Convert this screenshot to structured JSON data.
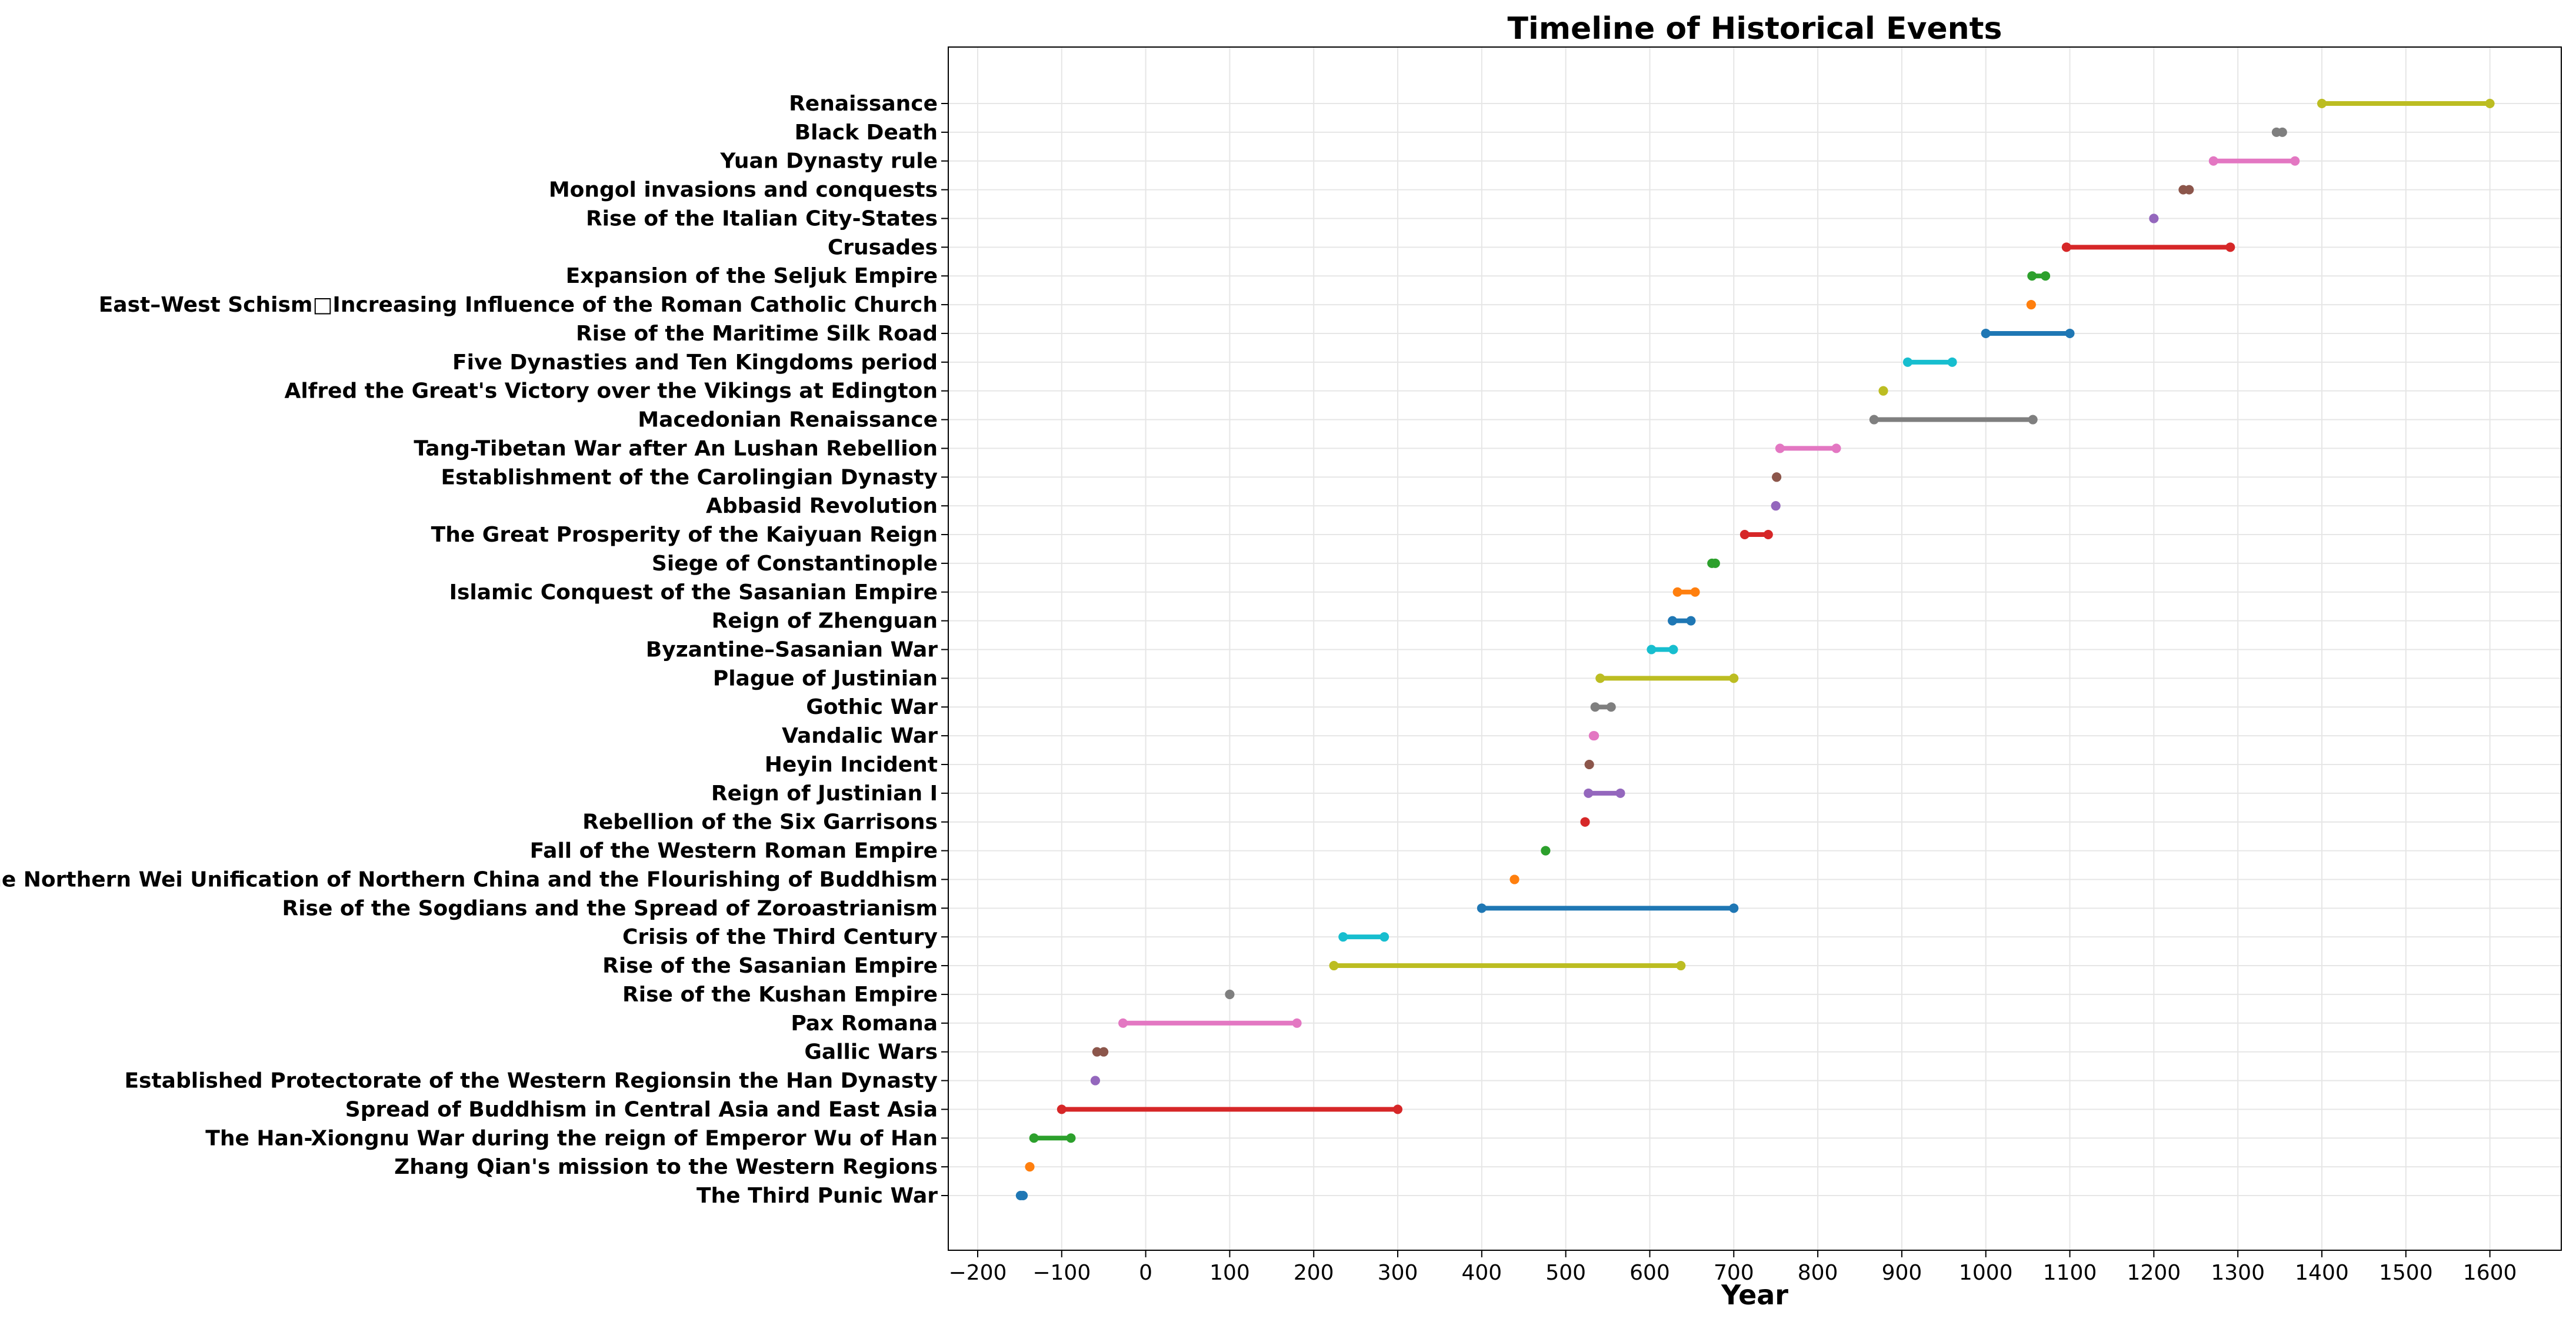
{
  "chart_data": {
    "type": "timeline",
    "title": "Timeline of Historical Events",
    "xlabel": "Year",
    "ylabel": "",
    "xlim": [
      -235,
      1685
    ],
    "xticks": [
      -200,
      -100,
      0,
      100,
      200,
      300,
      400,
      500,
      600,
      700,
      800,
      900,
      1000,
      1100,
      1200,
      1300,
      1400,
      1500,
      1600
    ],
    "grid": true,
    "palette": [
      "#1f77b4",
      "#ff7f0e",
      "#2ca02c",
      "#d62728",
      "#9467bd",
      "#8c564b",
      "#e377c2",
      "#7f7f7f",
      "#bcbd22",
      "#17becf"
    ],
    "events": [
      {
        "label": "The Third Punic War",
        "start": -149,
        "end": -146
      },
      {
        "label": "Zhang Qian's mission to the Western Regions",
        "start": -138,
        "end": -138
      },
      {
        "label": "The Han-Xiongnu War during the reign of Emperor Wu of Han",
        "start": -133,
        "end": -89
      },
      {
        "label": "Spread of Buddhism in Central Asia and East Asia",
        "start": -100,
        "end": 300
      },
      {
        "label": "Established Protectorate of the Western Regionsin the Han Dynasty",
        "start": -60,
        "end": -60
      },
      {
        "label": "Gallic Wars",
        "start": -58,
        "end": -50
      },
      {
        "label": "Pax Romana",
        "start": -27,
        "end": 180
      },
      {
        "label": "Rise of the Kushan Empire",
        "start": 100,
        "end": 100
      },
      {
        "label": "Rise of the Sasanian Empire",
        "start": 224,
        "end": 637
      },
      {
        "label": "Crisis of the Third Century",
        "start": 235,
        "end": 284
      },
      {
        "label": "Rise of the Sogdians and the Spread of Zoroastrianism",
        "start": 400,
        "end": 700
      },
      {
        "label": "The Northern Wei Unification of Northern China and the Flourishing of Buddhism",
        "start": 439,
        "end": 439
      },
      {
        "label": "Fall of the Western Roman Empire",
        "start": 476,
        "end": 476
      },
      {
        "label": "Rebellion of the Six Garrisons",
        "start": 523,
        "end": 523
      },
      {
        "label": "Reign of Justinian I",
        "start": 527,
        "end": 565
      },
      {
        "label": "Heyin Incident",
        "start": 528,
        "end": 528
      },
      {
        "label": "Vandalic War",
        "start": 533,
        "end": 534
      },
      {
        "label": "Gothic War ",
        "start": 535,
        "end": 554
      },
      {
        "label": "Plague of Justinian",
        "start": 541,
        "end": 700
      },
      {
        "label": "Byzantine–Sasanian War ",
        "start": 602,
        "end": 628
      },
      {
        "label": "Reign of Zhenguan",
        "start": 627,
        "end": 649
      },
      {
        "label": "Islamic Conquest of the Sasanian Empire",
        "start": 633,
        "end": 654
      },
      {
        "label": "Siege of Constantinople",
        "start": 674,
        "end": 678
      },
      {
        "label": "The Great Prosperity of the Kaiyuan Reign",
        "start": 713,
        "end": 741
      },
      {
        "label": "Abbasid Revolution",
        "start": 750,
        "end": 750
      },
      {
        "label": "Establishment of the Carolingian Dynasty",
        "start": 751,
        "end": 751
      },
      {
        "label": "Tang-Tibetan War after An Lushan Rebellion",
        "start": 755,
        "end": 822
      },
      {
        "label": "Macedonian Renaissance",
        "start": 867,
        "end": 1056
      },
      {
        "label": "Alfred the Great's Victory over the Vikings at Edington",
        "start": 878,
        "end": 878
      },
      {
        "label": "Five Dynasties and Ten Kingdoms period",
        "start": 907,
        "end": 960
      },
      {
        "label": "Rise of the Maritime Silk Road",
        "start": 1000,
        "end": 1100
      },
      {
        "label": "East–West Schism□Increasing Influence of the Roman Catholic Church",
        "start": 1054,
        "end": 1054
      },
      {
        "label": "Expansion of the Seljuk Empire",
        "start": 1055,
        "end": 1071
      },
      {
        "label": "Crusades",
        "start": 1096,
        "end": 1291
      },
      {
        "label": "Rise of the Italian City-States",
        "start": 1200,
        "end": 1200
      },
      {
        "label": "Mongol invasions and conquests",
        "start": 1235,
        "end": 1242
      },
      {
        "label": "Yuan Dynasty rule",
        "start": 1271,
        "end": 1368
      },
      {
        "label": "Black Death",
        "start": 1346,
        "end": 1353
      },
      {
        "label": "Renaissance",
        "start": 1400,
        "end": 1600
      }
    ]
  }
}
